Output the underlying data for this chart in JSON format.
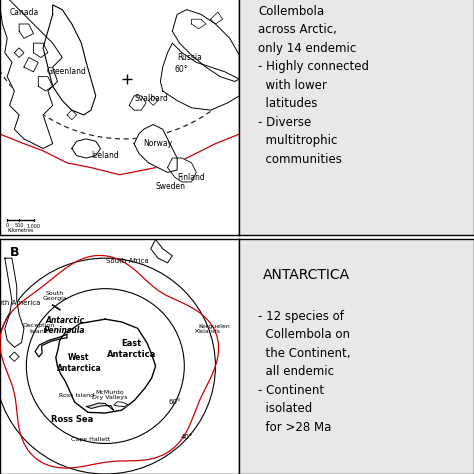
{
  "bg_color": "#ffffff",
  "panel_bg": "#e8e8e8",
  "map_bg": "#ffffff",
  "border_color": "#000000",
  "top_right_text_line1": "Collembola\nacross Arctic,\nonly 14 endemic\n- Highly connected\n  with lower\n  latitudes\n- Diverse\n  multitrophic\n  communities",
  "bottom_right_title": "ANTARCTICA",
  "bottom_right_text": "- 12 species of\n  Collembola on\n  the Continent,\n  all endemic\n- Continent\n  isolated\n  for >28 Ma",
  "text_fontsize": 8.5,
  "label_fontsize": 5.5,
  "title_fontsize": 10
}
